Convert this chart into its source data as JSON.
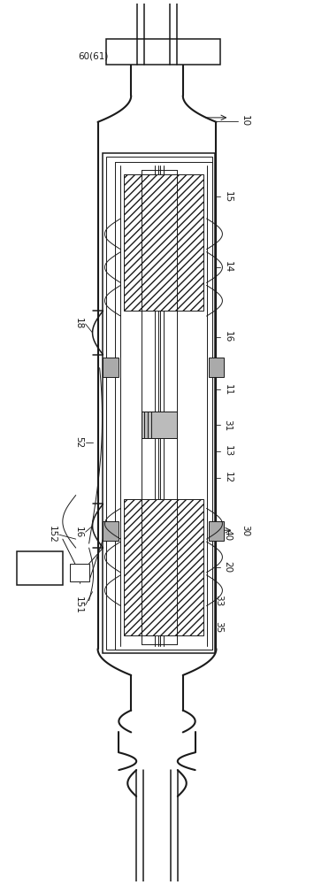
{
  "bg_color": "#ffffff",
  "line_color": "#1a1a1a",
  "fig_width": 3.55,
  "fig_height": 10.0
}
